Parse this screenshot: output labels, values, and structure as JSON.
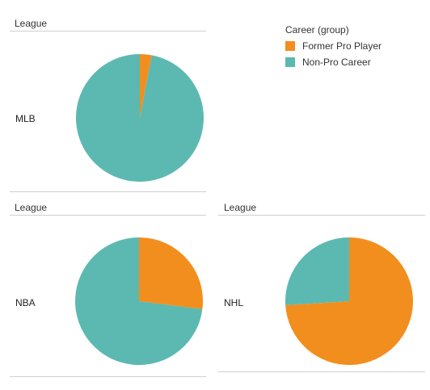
{
  "colors": {
    "former_pro_player": "#f28e1e",
    "non_pro_career": "#5cb9b1"
  },
  "legend": {
    "title": "Career (group)",
    "items": [
      {
        "label": "Former Pro Player",
        "color": "#f28e1e"
      },
      {
        "label": "Non-Pro Career",
        "color": "#5cb9b1"
      }
    ]
  },
  "chart_data": {
    "type": "pie",
    "panel_header": "League",
    "panels": [
      {
        "league": "MLB",
        "slices": [
          {
            "category": "Former Pro Player",
            "share": 0.03
          },
          {
            "category": "Non-Pro Career",
            "share": 0.97
          }
        ]
      },
      {
        "league": "NBA",
        "slices": [
          {
            "category": "Former Pro Player",
            "share": 0.27
          },
          {
            "category": "Non-Pro Career",
            "share": 0.73
          }
        ]
      },
      {
        "league": "NHL",
        "slices": [
          {
            "category": "Former Pro Player",
            "share": 0.74
          },
          {
            "category": "Non-Pro Career",
            "share": 0.26
          }
        ]
      }
    ]
  }
}
